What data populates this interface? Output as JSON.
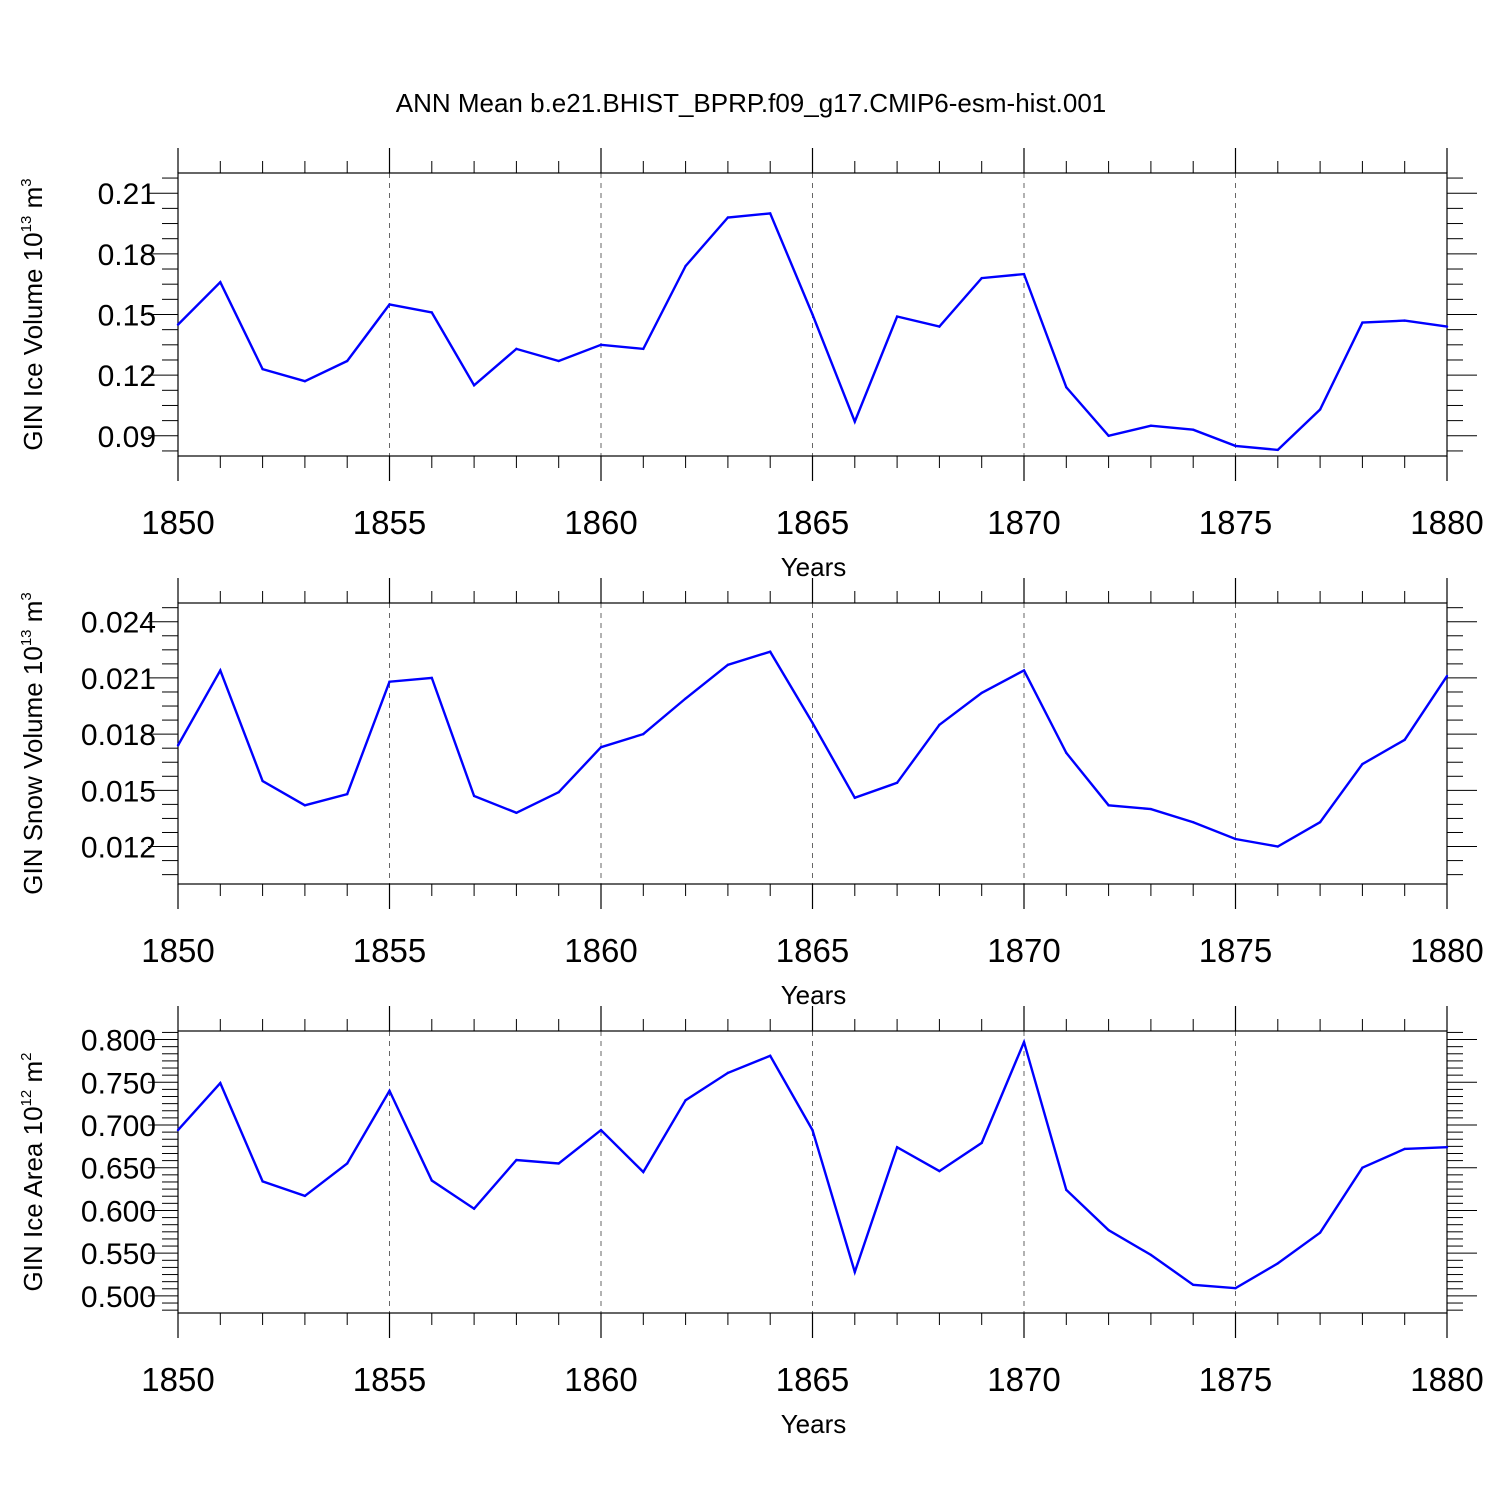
{
  "figure": {
    "title": "ANN Mean b.e21.BHIST_BPRP.f09_g17.CMIP6-esm-hist.001"
  },
  "chart_data": [
    {
      "type": "line",
      "ylabel": {
        "text": "GIN Ice Volume 10",
        "sup": "13",
        "unit": " m",
        "unit_sup": "3"
      },
      "xlabel": "Years",
      "xlim": [
        1850,
        1880
      ],
      "ylim": [
        0.08,
        0.22
      ],
      "xticks": [
        1850,
        1855,
        1860,
        1865,
        1870,
        1875,
        1880
      ],
      "xtick_labels": [
        "1850",
        "1855",
        "1860",
        "1865",
        "1870",
        "1875",
        "1880"
      ],
      "yticks": [
        0.09,
        0.12,
        0.15,
        0.18,
        0.21
      ],
      "ytick_labels": [
        "0.09",
        "0.12",
        "0.15",
        "0.18",
        "0.21"
      ],
      "grid": "x-dashed",
      "line_color": "#0000ff",
      "x": [
        1850,
        1851,
        1852,
        1853,
        1854,
        1855,
        1856,
        1857,
        1858,
        1859,
        1860,
        1861,
        1862,
        1863,
        1864,
        1865,
        1866,
        1867,
        1868,
        1869,
        1870,
        1871,
        1872,
        1873,
        1874,
        1875,
        1876,
        1877,
        1878,
        1879,
        1880
      ],
      "values": [
        0.145,
        0.166,
        0.123,
        0.117,
        0.127,
        0.155,
        0.151,
        0.115,
        0.133,
        0.127,
        0.135,
        0.133,
        0.174,
        0.198,
        0.2,
        0.15,
        0.097,
        0.149,
        0.144,
        0.168,
        0.17,
        0.114,
        0.09,
        0.095,
        0.093,
        0.085,
        0.083,
        0.103,
        0.146,
        0.147,
        0.144
      ]
    },
    {
      "type": "line",
      "ylabel": {
        "text": "GIN Snow Volume 10",
        "sup": "13",
        "unit": " m",
        "unit_sup": "3"
      },
      "xlabel": "Years",
      "xlim": [
        1850,
        1880
      ],
      "ylim": [
        0.01,
        0.025
      ],
      "xticks": [
        1850,
        1855,
        1860,
        1865,
        1870,
        1875,
        1880
      ],
      "xtick_labels": [
        "1850",
        "1855",
        "1860",
        "1865",
        "1870",
        "1875",
        "1880"
      ],
      "yticks": [
        0.012,
        0.015,
        0.018,
        0.021,
        0.024
      ],
      "ytick_labels": [
        "0.012",
        "0.015",
        "0.018",
        "0.021",
        "0.024"
      ],
      "grid": "x-dashed",
      "line_color": "#0000ff",
      "x": [
        1850,
        1851,
        1852,
        1853,
        1854,
        1855,
        1856,
        1857,
        1858,
        1859,
        1860,
        1861,
        1862,
        1863,
        1864,
        1865,
        1866,
        1867,
        1868,
        1869,
        1870,
        1871,
        1872,
        1873,
        1874,
        1875,
        1876,
        1877,
        1878,
        1879,
        1880
      ],
      "values": [
        0.0174,
        0.0214,
        0.0155,
        0.0142,
        0.0148,
        0.0208,
        0.021,
        0.0147,
        0.0138,
        0.0149,
        0.0173,
        0.018,
        0.0199,
        0.0217,
        0.0224,
        0.0186,
        0.0146,
        0.0154,
        0.0185,
        0.0202,
        0.0214,
        0.017,
        0.0142,
        0.014,
        0.0133,
        0.0124,
        0.012,
        0.0133,
        0.0164,
        0.0177,
        0.0211
      ]
    },
    {
      "type": "line",
      "ylabel": {
        "text": "GIN Ice Area 10",
        "sup": "12",
        "unit": " m",
        "unit_sup": "2"
      },
      "xlabel": "Years",
      "xlim": [
        1850,
        1880
      ],
      "ylim": [
        0.48,
        0.81
      ],
      "xticks": [
        1850,
        1855,
        1860,
        1865,
        1870,
        1875,
        1880
      ],
      "xtick_labels": [
        "1850",
        "1855",
        "1860",
        "1865",
        "1870",
        "1875",
        "1880"
      ],
      "yticks": [
        0.5,
        0.55,
        0.6,
        0.65,
        0.7,
        0.75,
        0.8
      ],
      "ytick_labels": [
        "0.500",
        "0.550",
        "0.600",
        "0.650",
        "0.700",
        "0.750",
        "0.800"
      ],
      "grid": "x-dashed",
      "line_color": "#0000ff",
      "x": [
        1850,
        1851,
        1852,
        1853,
        1854,
        1855,
        1856,
        1857,
        1858,
        1859,
        1860,
        1861,
        1862,
        1863,
        1864,
        1865,
        1866,
        1867,
        1868,
        1869,
        1870,
        1871,
        1872,
        1873,
        1874,
        1875,
        1876,
        1877,
        1878,
        1879,
        1880
      ],
      "values": [
        0.694,
        0.749,
        0.634,
        0.617,
        0.655,
        0.74,
        0.635,
        0.602,
        0.659,
        0.655,
        0.694,
        0.645,
        0.729,
        0.761,
        0.781,
        0.694,
        0.528,
        0.674,
        0.646,
        0.679,
        0.797,
        0.624,
        0.577,
        0.548,
        0.513,
        0.509,
        0.538,
        0.574,
        0.65,
        0.672,
        0.674
      ]
    }
  ]
}
